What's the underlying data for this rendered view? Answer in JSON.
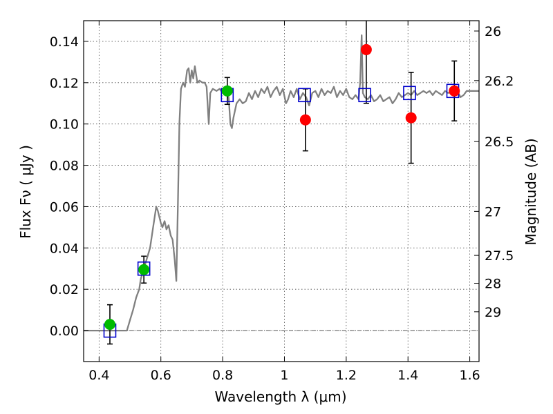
{
  "chart_data": {
    "type": "scatter",
    "xlabel": "Wavelength  λ (μm)",
    "ylabel": "Flux  Fν  ( μJy )",
    "y2label": "Magnitude (AB)",
    "xlim": [
      0.35,
      1.63
    ],
    "ylim": [
      -0.015,
      0.15
    ],
    "grid": true,
    "x_ticks": [
      0.4,
      0.6,
      0.8,
      1.0,
      1.2,
      1.4,
      1.6
    ],
    "x_tick_labels": [
      "0.4",
      "0.6",
      "0.8",
      "1",
      "1.2",
      "1.4",
      "1.6"
    ],
    "y_ticks": [
      0.0,
      0.02,
      0.04,
      0.06,
      0.08,
      0.1,
      0.12,
      0.14
    ],
    "y_tick_labels": [
      "0.00",
      "0.02",
      "0.04",
      "0.06",
      "0.08",
      "0.10",
      "0.12",
      "0.14"
    ],
    "y2_ticks": [
      {
        "label": "26",
        "flux": 0.145
      },
      {
        "label": "26.2",
        "flux": 0.121
      },
      {
        "label": "26.5",
        "flux": 0.0915
      },
      {
        "label": "27",
        "flux": 0.0577
      },
      {
        "label": "27.5",
        "flux": 0.0364
      },
      {
        "label": "28",
        "flux": 0.0229
      },
      {
        "label": "29",
        "flux": 0.0091
      }
    ],
    "colors": {
      "spectrum": "#808080",
      "model": "#0000cc",
      "green": "#00bb00",
      "red": "#ff0000",
      "errorbar": "#000000"
    },
    "series": [
      {
        "kind": "spectrum",
        "points": [
          [
            0.35,
            0.0
          ],
          [
            0.49,
            0.0
          ],
          [
            0.5,
            0.005
          ],
          [
            0.51,
            0.01
          ],
          [
            0.52,
            0.016
          ],
          [
            0.53,
            0.02
          ],
          [
            0.535,
            0.025
          ],
          [
            0.545,
            0.03
          ],
          [
            0.555,
            0.035
          ],
          [
            0.565,
            0.04
          ],
          [
            0.575,
            0.05
          ],
          [
            0.585,
            0.06
          ],
          [
            0.59,
            0.058
          ],
          [
            0.6,
            0.052
          ],
          [
            0.605,
            0.05
          ],
          [
            0.612,
            0.053
          ],
          [
            0.618,
            0.049
          ],
          [
            0.625,
            0.051
          ],
          [
            0.632,
            0.046
          ],
          [
            0.638,
            0.044
          ],
          [
            0.645,
            0.034
          ],
          [
            0.65,
            0.024
          ],
          [
            0.655,
            0.06
          ],
          [
            0.66,
            0.1
          ],
          [
            0.665,
            0.117
          ],
          [
            0.672,
            0.12
          ],
          [
            0.678,
            0.118
          ],
          [
            0.685,
            0.126
          ],
          [
            0.69,
            0.127
          ],
          [
            0.695,
            0.12
          ],
          [
            0.7,
            0.126
          ],
          [
            0.705,
            0.122
          ],
          [
            0.71,
            0.128
          ],
          [
            0.718,
            0.12
          ],
          [
            0.725,
            0.121
          ],
          [
            0.735,
            0.12
          ],
          [
            0.742,
            0.12
          ],
          [
            0.748,
            0.118
          ],
          [
            0.755,
            0.1
          ],
          [
            0.76,
            0.115
          ],
          [
            0.768,
            0.117
          ],
          [
            0.78,
            0.116
          ],
          [
            0.79,
            0.117
          ],
          [
            0.8,
            0.115
          ],
          [
            0.81,
            0.116
          ],
          [
            0.815,
            0.118
          ],
          [
            0.82,
            0.112
          ],
          [
            0.825,
            0.1
          ],
          [
            0.83,
            0.098
          ],
          [
            0.835,
            0.103
          ],
          [
            0.845,
            0.11
          ],
          [
            0.855,
            0.112
          ],
          [
            0.865,
            0.11
          ],
          [
            0.875,
            0.111
          ],
          [
            0.885,
            0.115
          ],
          [
            0.895,
            0.112
          ],
          [
            0.905,
            0.116
          ],
          [
            0.915,
            0.113
          ],
          [
            0.925,
            0.117
          ],
          [
            0.935,
            0.115
          ],
          [
            0.945,
            0.118
          ],
          [
            0.955,
            0.113
          ],
          [
            0.965,
            0.116
          ],
          [
            0.975,
            0.118
          ],
          [
            0.985,
            0.114
          ],
          [
            0.995,
            0.117
          ],
          [
            1.005,
            0.11
          ],
          [
            1.012,
            0.112
          ],
          [
            1.02,
            0.116
          ],
          [
            1.03,
            0.113
          ],
          [
            1.04,
            0.117
          ],
          [
            1.05,
            0.112
          ],
          [
            1.06,
            0.115
          ],
          [
            1.07,
            0.113
          ],
          [
            1.08,
            0.109
          ],
          [
            1.09,
            0.115
          ],
          [
            1.1,
            0.116
          ],
          [
            1.11,
            0.113
          ],
          [
            1.12,
            0.117
          ],
          [
            1.13,
            0.114
          ],
          [
            1.14,
            0.116
          ],
          [
            1.15,
            0.115
          ],
          [
            1.16,
            0.118
          ],
          [
            1.17,
            0.113
          ],
          [
            1.18,
            0.116
          ],
          [
            1.19,
            0.114
          ],
          [
            1.2,
            0.117
          ],
          [
            1.21,
            0.113
          ],
          [
            1.22,
            0.112
          ],
          [
            1.23,
            0.114
          ],
          [
            1.24,
            0.112
          ],
          [
            1.245,
            0.12
          ],
          [
            1.25,
            0.143
          ],
          [
            1.254,
            0.115
          ],
          [
            1.26,
            0.113
          ],
          [
            1.27,
            0.112
          ],
          [
            1.28,
            0.114
          ],
          [
            1.29,
            0.111
          ],
          [
            1.3,
            0.112
          ],
          [
            1.31,
            0.114
          ],
          [
            1.32,
            0.111
          ],
          [
            1.33,
            0.112
          ],
          [
            1.34,
            0.113
          ],
          [
            1.35,
            0.11
          ],
          [
            1.36,
            0.112
          ],
          [
            1.37,
            0.115
          ],
          [
            1.38,
            0.113
          ],
          [
            1.39,
            0.114
          ],
          [
            1.4,
            0.115
          ],
          [
            1.41,
            0.114
          ],
          [
            1.42,
            0.116
          ],
          [
            1.43,
            0.114
          ],
          [
            1.44,
            0.115
          ],
          [
            1.45,
            0.116
          ],
          [
            1.46,
            0.115
          ],
          [
            1.47,
            0.116
          ],
          [
            1.48,
            0.114
          ],
          [
            1.49,
            0.116
          ],
          [
            1.5,
            0.115
          ],
          [
            1.51,
            0.114
          ],
          [
            1.52,
            0.116
          ],
          [
            1.53,
            0.115
          ],
          [
            1.54,
            0.116
          ],
          [
            1.55,
            0.115
          ],
          [
            1.56,
            0.116
          ],
          [
            1.57,
            0.113
          ],
          [
            1.58,
            0.114
          ],
          [
            1.59,
            0.116
          ],
          [
            1.6,
            0.116
          ],
          [
            1.63,
            0.116
          ]
        ]
      },
      {
        "kind": "model",
        "marker": "square",
        "points": [
          [
            0.435,
            0.0
          ],
          [
            0.545,
            0.03
          ],
          [
            0.815,
            0.114
          ],
          [
            1.065,
            0.114
          ],
          [
            1.26,
            0.114
          ],
          [
            1.405,
            0.115
          ],
          [
            1.545,
            0.116
          ]
        ]
      },
      {
        "kind": "observed",
        "color": "green",
        "points": [
          {
            "x": 0.435,
            "y": 0.003,
            "err": 0.0095
          },
          {
            "x": 0.545,
            "y": 0.0295,
            "err": 0.0065
          },
          {
            "x": 0.815,
            "y": 0.116,
            "err": 0.0065
          }
        ]
      },
      {
        "kind": "observed",
        "color": "red",
        "points": [
          {
            "x": 1.068,
            "y": 0.102,
            "err": 0.015
          },
          {
            "x": 1.265,
            "y": 0.136,
            "err": 0.026
          },
          {
            "x": 1.41,
            "y": 0.103,
            "err": 0.022
          },
          {
            "x": 1.55,
            "y": 0.116,
            "err": 0.0145
          }
        ]
      }
    ]
  }
}
